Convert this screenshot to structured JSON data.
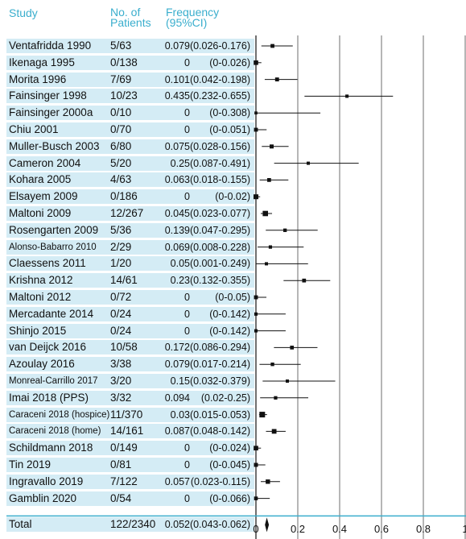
{
  "headers": {
    "study": "Study",
    "patients": [
      "No. of",
      "Patients"
    ],
    "frequency": [
      "Frequency",
      "(95%CI)"
    ]
  },
  "chart_data": {
    "type": "forest",
    "xlim": [
      0,
      1
    ],
    "xticks": [
      "0",
      "0.2",
      "0.4",
      "0.6",
      "0.8",
      "1"
    ],
    "grid": "vertical lines at each tick",
    "rows": [
      {
        "study": "Ventafridda 1990",
        "patients": "5/63",
        "freq": "0.079",
        "ci": "(0.026-0.176)",
        "est": 0.079,
        "lo": 0.026,
        "hi": 0.176
      },
      {
        "study": "Ikenaga 1995",
        "patients": "0/138",
        "freq": "0",
        "ci": "(0-0.026)",
        "est": 0,
        "lo": 0,
        "hi": 0.026
      },
      {
        "study": "Morita 1996",
        "patients": "7/69",
        "freq": "0.101",
        "ci": "(0.042-0.198)",
        "est": 0.101,
        "lo": 0.042,
        "hi": 0.198
      },
      {
        "study": "Fainsinger 1998",
        "patients": "10/23",
        "freq": "0.435",
        "ci": "(0.232-0.655)",
        "est": 0.435,
        "lo": 0.232,
        "hi": 0.655
      },
      {
        "study": "Fainsinger 2000a",
        "patients": "0/10",
        "freq": "0",
        "ci": "(0-0.308)",
        "est": 0,
        "lo": 0,
        "hi": 0.308
      },
      {
        "study": "Chiu 2001",
        "patients": "0/70",
        "freq": "0",
        "ci": "(0-0.051)",
        "est": 0,
        "lo": 0,
        "hi": 0.051
      },
      {
        "study": "Muller-Busch 2003",
        "patients": "6/80",
        "freq": "0.075",
        "ci": "(0.028-0.156)",
        "est": 0.075,
        "lo": 0.028,
        "hi": 0.156
      },
      {
        "study": "Cameron 2004",
        "patients": "5/20",
        "freq": "0.25",
        "ci": "(0.087-0.491)",
        "est": 0.25,
        "lo": 0.087,
        "hi": 0.491
      },
      {
        "study": "Kohara 2005",
        "patients": "4/63",
        "freq": "0.063",
        "ci": "(0.018-0.155)",
        "est": 0.063,
        "lo": 0.018,
        "hi": 0.155
      },
      {
        "study": "Elsayem 2009",
        "patients": "0/186",
        "freq": "0",
        "ci": "(0-0.02)",
        "est": 0,
        "lo": 0,
        "hi": 0.02
      },
      {
        "study": "Maltoni 2009",
        "patients": "12/267",
        "freq": "0.045",
        "ci": "(0.023-0.077)",
        "est": 0.045,
        "lo": 0.023,
        "hi": 0.077
      },
      {
        "study": "Rosengarten 2009",
        "patients": "5/36",
        "freq": "0.139",
        "ci": "(0.047-0.295)",
        "est": 0.139,
        "lo": 0.047,
        "hi": 0.295
      },
      {
        "study": "Alonso-Babarro 2010",
        "patients": "2/29",
        "freq": "0.069",
        "ci": "(0.008-0.228)",
        "est": 0.069,
        "lo": 0.008,
        "hi": 0.228,
        "small": true
      },
      {
        "study": "Claessens 2011",
        "patients": "1/20",
        "freq": "0.05",
        "ci": "(0.001-0.249)",
        "est": 0.05,
        "lo": 0.001,
        "hi": 0.249
      },
      {
        "study": "Krishna 2012",
        "patients": "14/61",
        "freq": "0.23",
        "ci": "(0.132-0.355)",
        "est": 0.23,
        "lo": 0.132,
        "hi": 0.355
      },
      {
        "study": "Maltoni 2012",
        "patients": "0/72",
        "freq": "0",
        "ci": "(0-0.05)",
        "est": 0,
        "lo": 0,
        "hi": 0.05
      },
      {
        "study": "Mercadante 2014",
        "patients": "0/24",
        "freq": "0",
        "ci": "(0-0.142)",
        "est": 0,
        "lo": 0,
        "hi": 0.142
      },
      {
        "study": "Shinjo 2015",
        "patients": "0/24",
        "freq": "0",
        "ci": "(0-0.142)",
        "est": 0,
        "lo": 0,
        "hi": 0.142
      },
      {
        "study": "van Deijck 2016",
        "patients": "10/58",
        "freq": "0.172",
        "ci": "(0.086-0.294)",
        "est": 0.172,
        "lo": 0.086,
        "hi": 0.294
      },
      {
        "study": "Azoulay 2016",
        "patients": "3/38",
        "freq": "0.079",
        "ci": "(0.017-0.214)",
        "est": 0.079,
        "lo": 0.017,
        "hi": 0.214
      },
      {
        "study": "Monreal-Carrillo 2017",
        "patients": "3/20",
        "freq": "0.15",
        "ci": "(0.032-0.379)",
        "est": 0.15,
        "lo": 0.032,
        "hi": 0.379,
        "small": true
      },
      {
        "study": "Imai 2018 (PPS)",
        "patients": "3/32",
        "freq": "0.094",
        "ci": "(0.02-0.25)",
        "est": 0.094,
        "lo": 0.02,
        "hi": 0.25
      },
      {
        "study": "Caraceni 2018 (hospice)",
        "patients": "11/370",
        "freq": "0.03",
        "ci": "(0.015-0.053)",
        "est": 0.03,
        "lo": 0.015,
        "hi": 0.053,
        "small": true
      },
      {
        "study": "Caraceni 2018 (home)",
        "patients": "14/161",
        "freq": "0.087",
        "ci": "(0.048-0.142)",
        "est": 0.087,
        "lo": 0.048,
        "hi": 0.142,
        "small": true
      },
      {
        "study": "Schildmann 2018",
        "patients": "0/149",
        "freq": "0",
        "ci": "(0-0.024)",
        "est": 0,
        "lo": 0,
        "hi": 0.024
      },
      {
        "study": "Tin 2019",
        "patients": "0/81",
        "freq": "0",
        "ci": "(0-0.045)",
        "est": 0,
        "lo": 0,
        "hi": 0.045
      },
      {
        "study": "Ingravallo 2019",
        "patients": "7/122",
        "freq": "0.057",
        "ci": "(0.023-0.115)",
        "est": 0.057,
        "lo": 0.023,
        "hi": 0.115
      },
      {
        "study": "Gamblin 2020",
        "patients": "0/54",
        "freq": "0",
        "ci": "(0-0.066)",
        "est": 0,
        "lo": 0,
        "hi": 0.066
      }
    ],
    "total": {
      "study": "Total",
      "patients": "122/2340",
      "freq": "0.052",
      "ci": "(0.043-0.062)",
      "est": 0.052,
      "lo": 0.043,
      "hi": 0.062
    }
  },
  "colors": {
    "header": "#3aaecd",
    "row_band": "#d4ecf5",
    "grid": "#6e6e6e",
    "separator": "#3aaecd",
    "marker": "#111111"
  }
}
